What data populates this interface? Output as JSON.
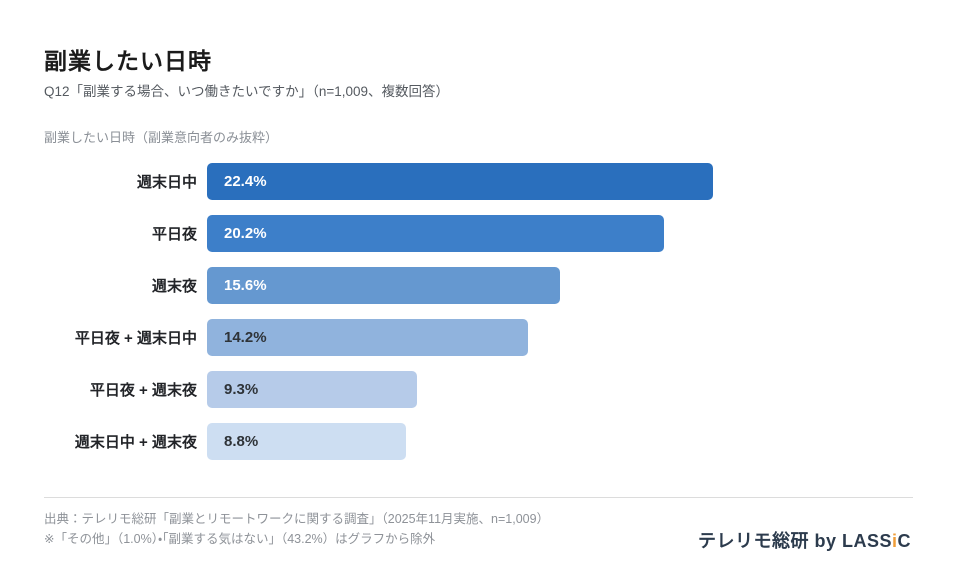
{
  "page": {
    "title": "副業したい日時",
    "subtitle": "Q12「副業する場合、いつ働きたいですか」（n=1,009、複数回答）",
    "chart_subtitle": "副業したい日時（副業意向者のみ抜粋）",
    "source_line": "出典：テレリモ総研「副業とリモートワークに関する調査」（2025年11月実施、n=1,009）",
    "note_line": "※「その他」（1.0%）・「副業する気はない」（43.2%）はグラフから除外",
    "logo": {
      "pre": "テレリモ総研 by LASS",
      "accent": "i",
      "post": "C",
      "text_color": "#2c3b4d",
      "accent_color": "#ef9d38"
    }
  },
  "chart_data": {
    "type": "bar",
    "orientation": "horizontal",
    "title": "副業したい日時（副業意向者のみ抜粋）",
    "xlabel": "",
    "ylabel": "",
    "unit": "%",
    "grid": false,
    "legend": false,
    "categories": [
      "週末日中",
      "平日夜",
      "週末夜",
      "平日夜 + 週末日中",
      "平日夜 + 週末夜",
      "週末日中 + 週末夜"
    ],
    "values": [
      22.4,
      20.2,
      15.6,
      14.2,
      9.3,
      8.8
    ],
    "value_labels": [
      "22.4%",
      "20.2%",
      "15.6%",
      "14.2%",
      "9.3%",
      "8.8%"
    ],
    "bar_colors": [
      "#2a6fbd",
      "#3d7fc9",
      "#6598d0",
      "#90b3dd",
      "#b6cbe9",
      "#cddef2"
    ],
    "value_text_colors": [
      "#ffffff",
      "#ffffff",
      "#ffffff",
      "#2e3338",
      "#2e3338",
      "#2e3338"
    ],
    "xlim": [
      0,
      31.3
    ],
    "excluded_note": "「その他」（1.0%）・「副業する気はない」（43.2%）はグラフから除外",
    "n": "1,009"
  }
}
